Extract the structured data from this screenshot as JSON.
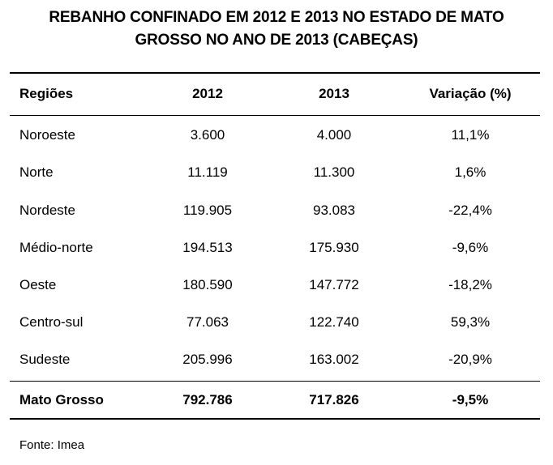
{
  "title": {
    "line1": "REBANHO CONFINADO EM 2012 E 2013 NO ESTADO DE MATO",
    "line2": "GROSSO NO ANO DE 2013 (CABEÇAS)"
  },
  "table": {
    "headers": {
      "region": "Regiões",
      "y2012": "2012",
      "y2013": "2013",
      "variation": "Variação (%)"
    },
    "rows": [
      {
        "region": "Noroeste",
        "y2012": "3.600",
        "y2013": "4.000",
        "variation": "11,1%"
      },
      {
        "region": "Norte",
        "y2012": "11.119",
        "y2013": "11.300",
        "variation": "1,6%"
      },
      {
        "region": "Nordeste",
        "y2012": "119.905",
        "y2013": "93.083",
        "variation": "-22,4%"
      },
      {
        "region": "Médio-norte",
        "y2012": "194.513",
        "y2013": "175.930",
        "variation": "-9,6%"
      },
      {
        "region": "Oeste",
        "y2012": "180.590",
        "y2013": "147.772",
        "variation": "-18,2%"
      },
      {
        "region": "Centro-sul",
        "y2012": "77.063",
        "y2013": "122.740",
        "variation": "59,3%"
      },
      {
        "region": "Sudeste",
        "y2012": "205.996",
        "y2013": "163.002",
        "variation": "-20,9%"
      }
    ],
    "total": {
      "region": "Mato Grosso",
      "y2012": "792.786",
      "y2013": "717.826",
      "variation": "-9,5%"
    }
  },
  "source": "Fonte: Imea"
}
